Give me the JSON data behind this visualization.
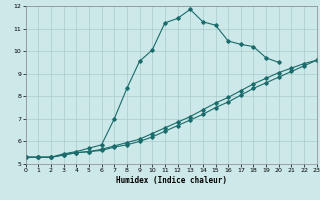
{
  "xlabel": "Humidex (Indice chaleur)",
  "bg_color": "#cce8e8",
  "line_color": "#1a6b6b",
  "grid_color": "#aacccc",
  "xlim": [
    0,
    23
  ],
  "ylim": [
    5,
    12
  ],
  "xticks": [
    0,
    1,
    2,
    3,
    4,
    5,
    6,
    7,
    8,
    9,
    10,
    11,
    12,
    13,
    14,
    15,
    16,
    17,
    18,
    19,
    20,
    21,
    22,
    23
  ],
  "yticks": [
    5,
    6,
    7,
    8,
    9,
    10,
    11,
    12
  ],
  "s1_x": [
    0,
    1,
    2,
    3,
    4,
    5,
    6,
    7,
    8,
    9,
    10,
    11,
    12,
    13,
    14,
    15,
    16,
    17,
    18,
    19,
    20
  ],
  "s1_y": [
    5.3,
    5.3,
    5.3,
    5.45,
    5.55,
    5.7,
    5.85,
    7.0,
    8.35,
    9.55,
    10.05,
    11.25,
    11.45,
    11.85,
    11.3,
    11.15,
    10.45,
    10.3,
    10.2,
    9.7,
    9.5
  ],
  "s2_x": [
    0,
    1,
    2,
    3,
    4,
    5,
    6,
    7,
    8,
    9,
    10,
    11,
    12,
    13,
    14,
    15,
    16,
    17,
    18,
    19,
    20,
    21,
    22,
    23
  ],
  "s2_y": [
    5.3,
    5.3,
    5.3,
    5.4,
    5.5,
    5.55,
    5.65,
    5.8,
    5.95,
    6.1,
    6.35,
    6.6,
    6.85,
    7.1,
    7.4,
    7.7,
    7.95,
    8.25,
    8.55,
    8.8,
    9.05,
    9.25,
    9.45,
    9.6
  ],
  "s3_x": [
    0,
    1,
    2,
    3,
    4,
    5,
    6,
    7,
    8,
    9,
    10,
    11,
    12,
    13,
    14,
    15,
    16,
    17,
    18,
    19,
    20,
    21,
    22,
    23
  ],
  "s3_y": [
    5.3,
    5.3,
    5.3,
    5.4,
    5.5,
    5.55,
    5.6,
    5.75,
    5.85,
    6.0,
    6.2,
    6.45,
    6.7,
    6.95,
    7.2,
    7.5,
    7.75,
    8.05,
    8.35,
    8.6,
    8.85,
    9.1,
    9.35,
    9.6
  ]
}
